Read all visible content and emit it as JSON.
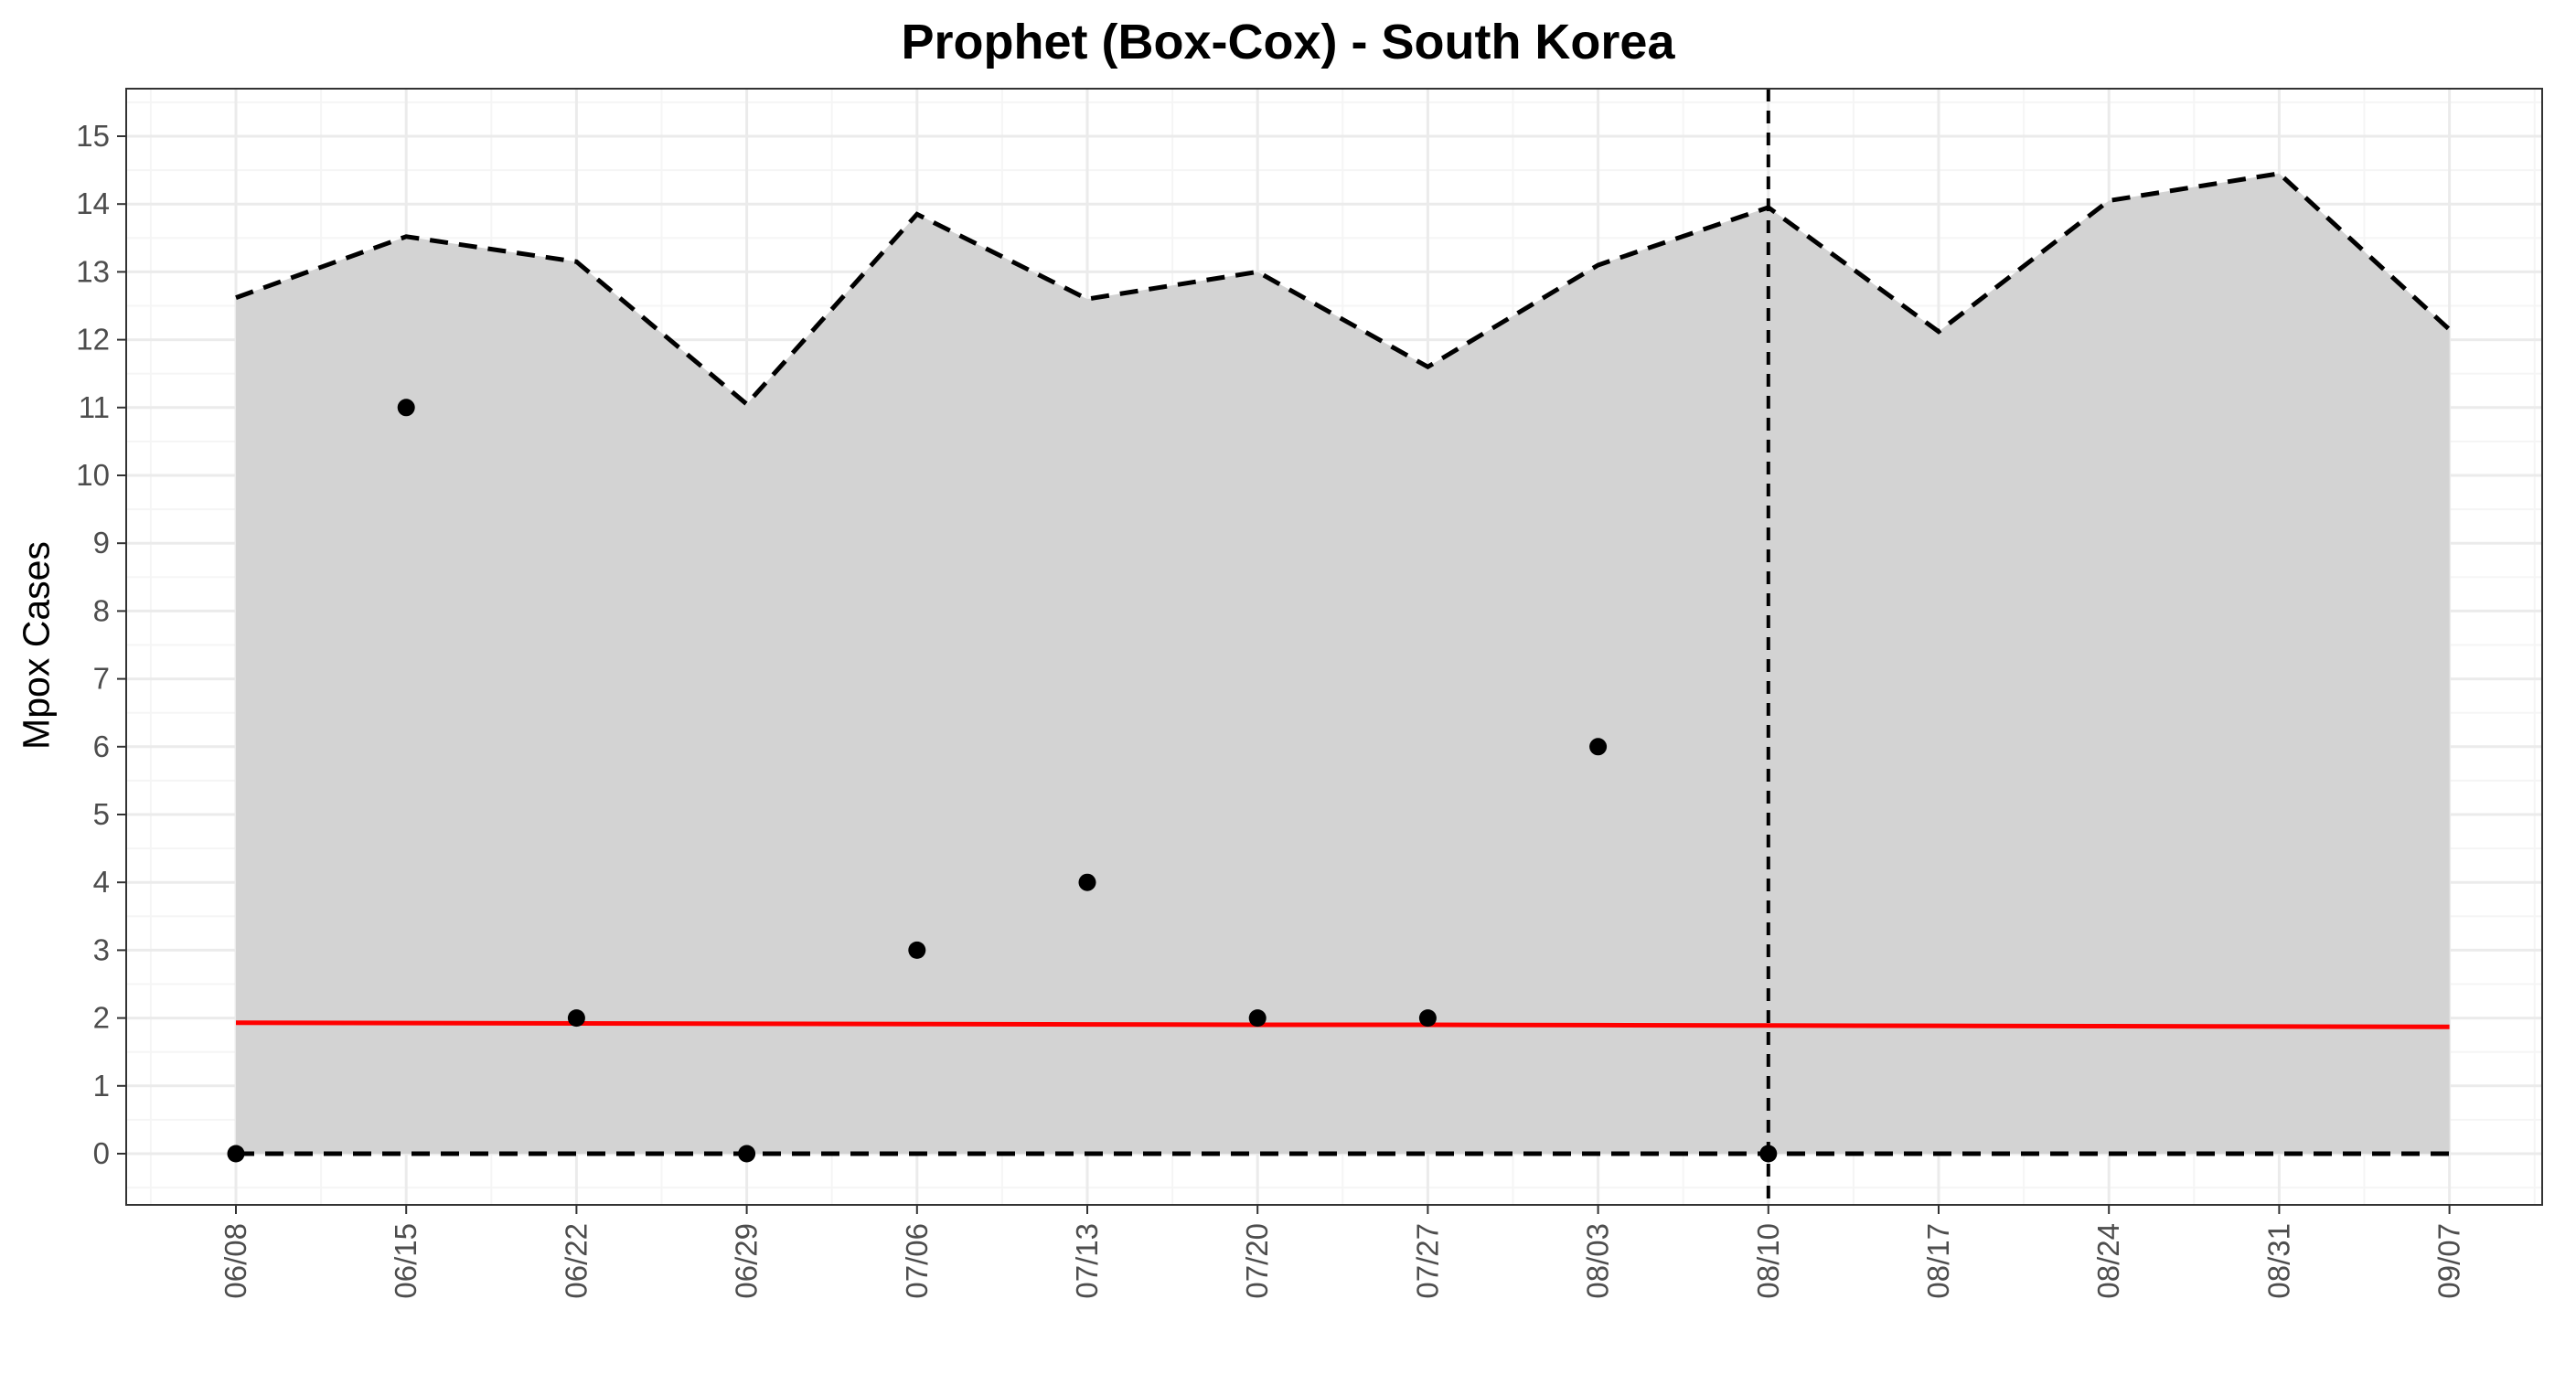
{
  "chart_data": {
    "type": "line",
    "title": "Prophet (Box-Cox) - South Korea",
    "xlabel": "",
    "ylabel": "Mpox Cases",
    "ylim": [
      -0.75,
      16.1
    ],
    "y_ticks": [
      0,
      1,
      2,
      3,
      4,
      5,
      6,
      7,
      8,
      9,
      10,
      11,
      12,
      13,
      14,
      15
    ],
    "x": [
      "06/08",
      "06/15",
      "06/22",
      "06/29",
      "07/06",
      "07/13",
      "07/20",
      "07/27",
      "08/03",
      "08/10",
      "08/17",
      "08/24",
      "08/31",
      "09/07"
    ],
    "upper_bound": [
      12.62,
      13.52,
      13.15,
      11.05,
      13.85,
      12.6,
      13.0,
      11.6,
      13.1,
      13.95,
      12.12,
      14.05,
      14.45,
      12.15
    ],
    "lower_bound": [
      0,
      0,
      0,
      0,
      0,
      0,
      0,
      0,
      0,
      0,
      0,
      0,
      0,
      0
    ],
    "forecast": [
      1.93,
      1.925,
      1.92,
      1.915,
      1.91,
      1.905,
      1.9,
      1.9,
      1.895,
      1.89,
      1.885,
      1.88,
      1.875,
      1.87
    ],
    "actual": [
      {
        "x": "06/08",
        "y": 0
      },
      {
        "x": "06/15",
        "y": 11
      },
      {
        "x": "06/22",
        "y": 2
      },
      {
        "x": "06/29",
        "y": 0
      },
      {
        "x": "07/06",
        "y": 3
      },
      {
        "x": "07/13",
        "y": 4
      },
      {
        "x": "07/20",
        "y": 2
      },
      {
        "x": "07/27",
        "y": 2
      },
      {
        "x": "08/03",
        "y": 6
      },
      {
        "x": "08/10",
        "y": 0
      }
    ],
    "forecast_start": "08/10",
    "grid": true,
    "colors": {
      "band": "#d3d3d3",
      "forecast": "#ff0000",
      "bounds": "#000000",
      "points": "#000000",
      "grid_major": "#ebebeb",
      "grid_minor": "#f5f5f5"
    }
  }
}
